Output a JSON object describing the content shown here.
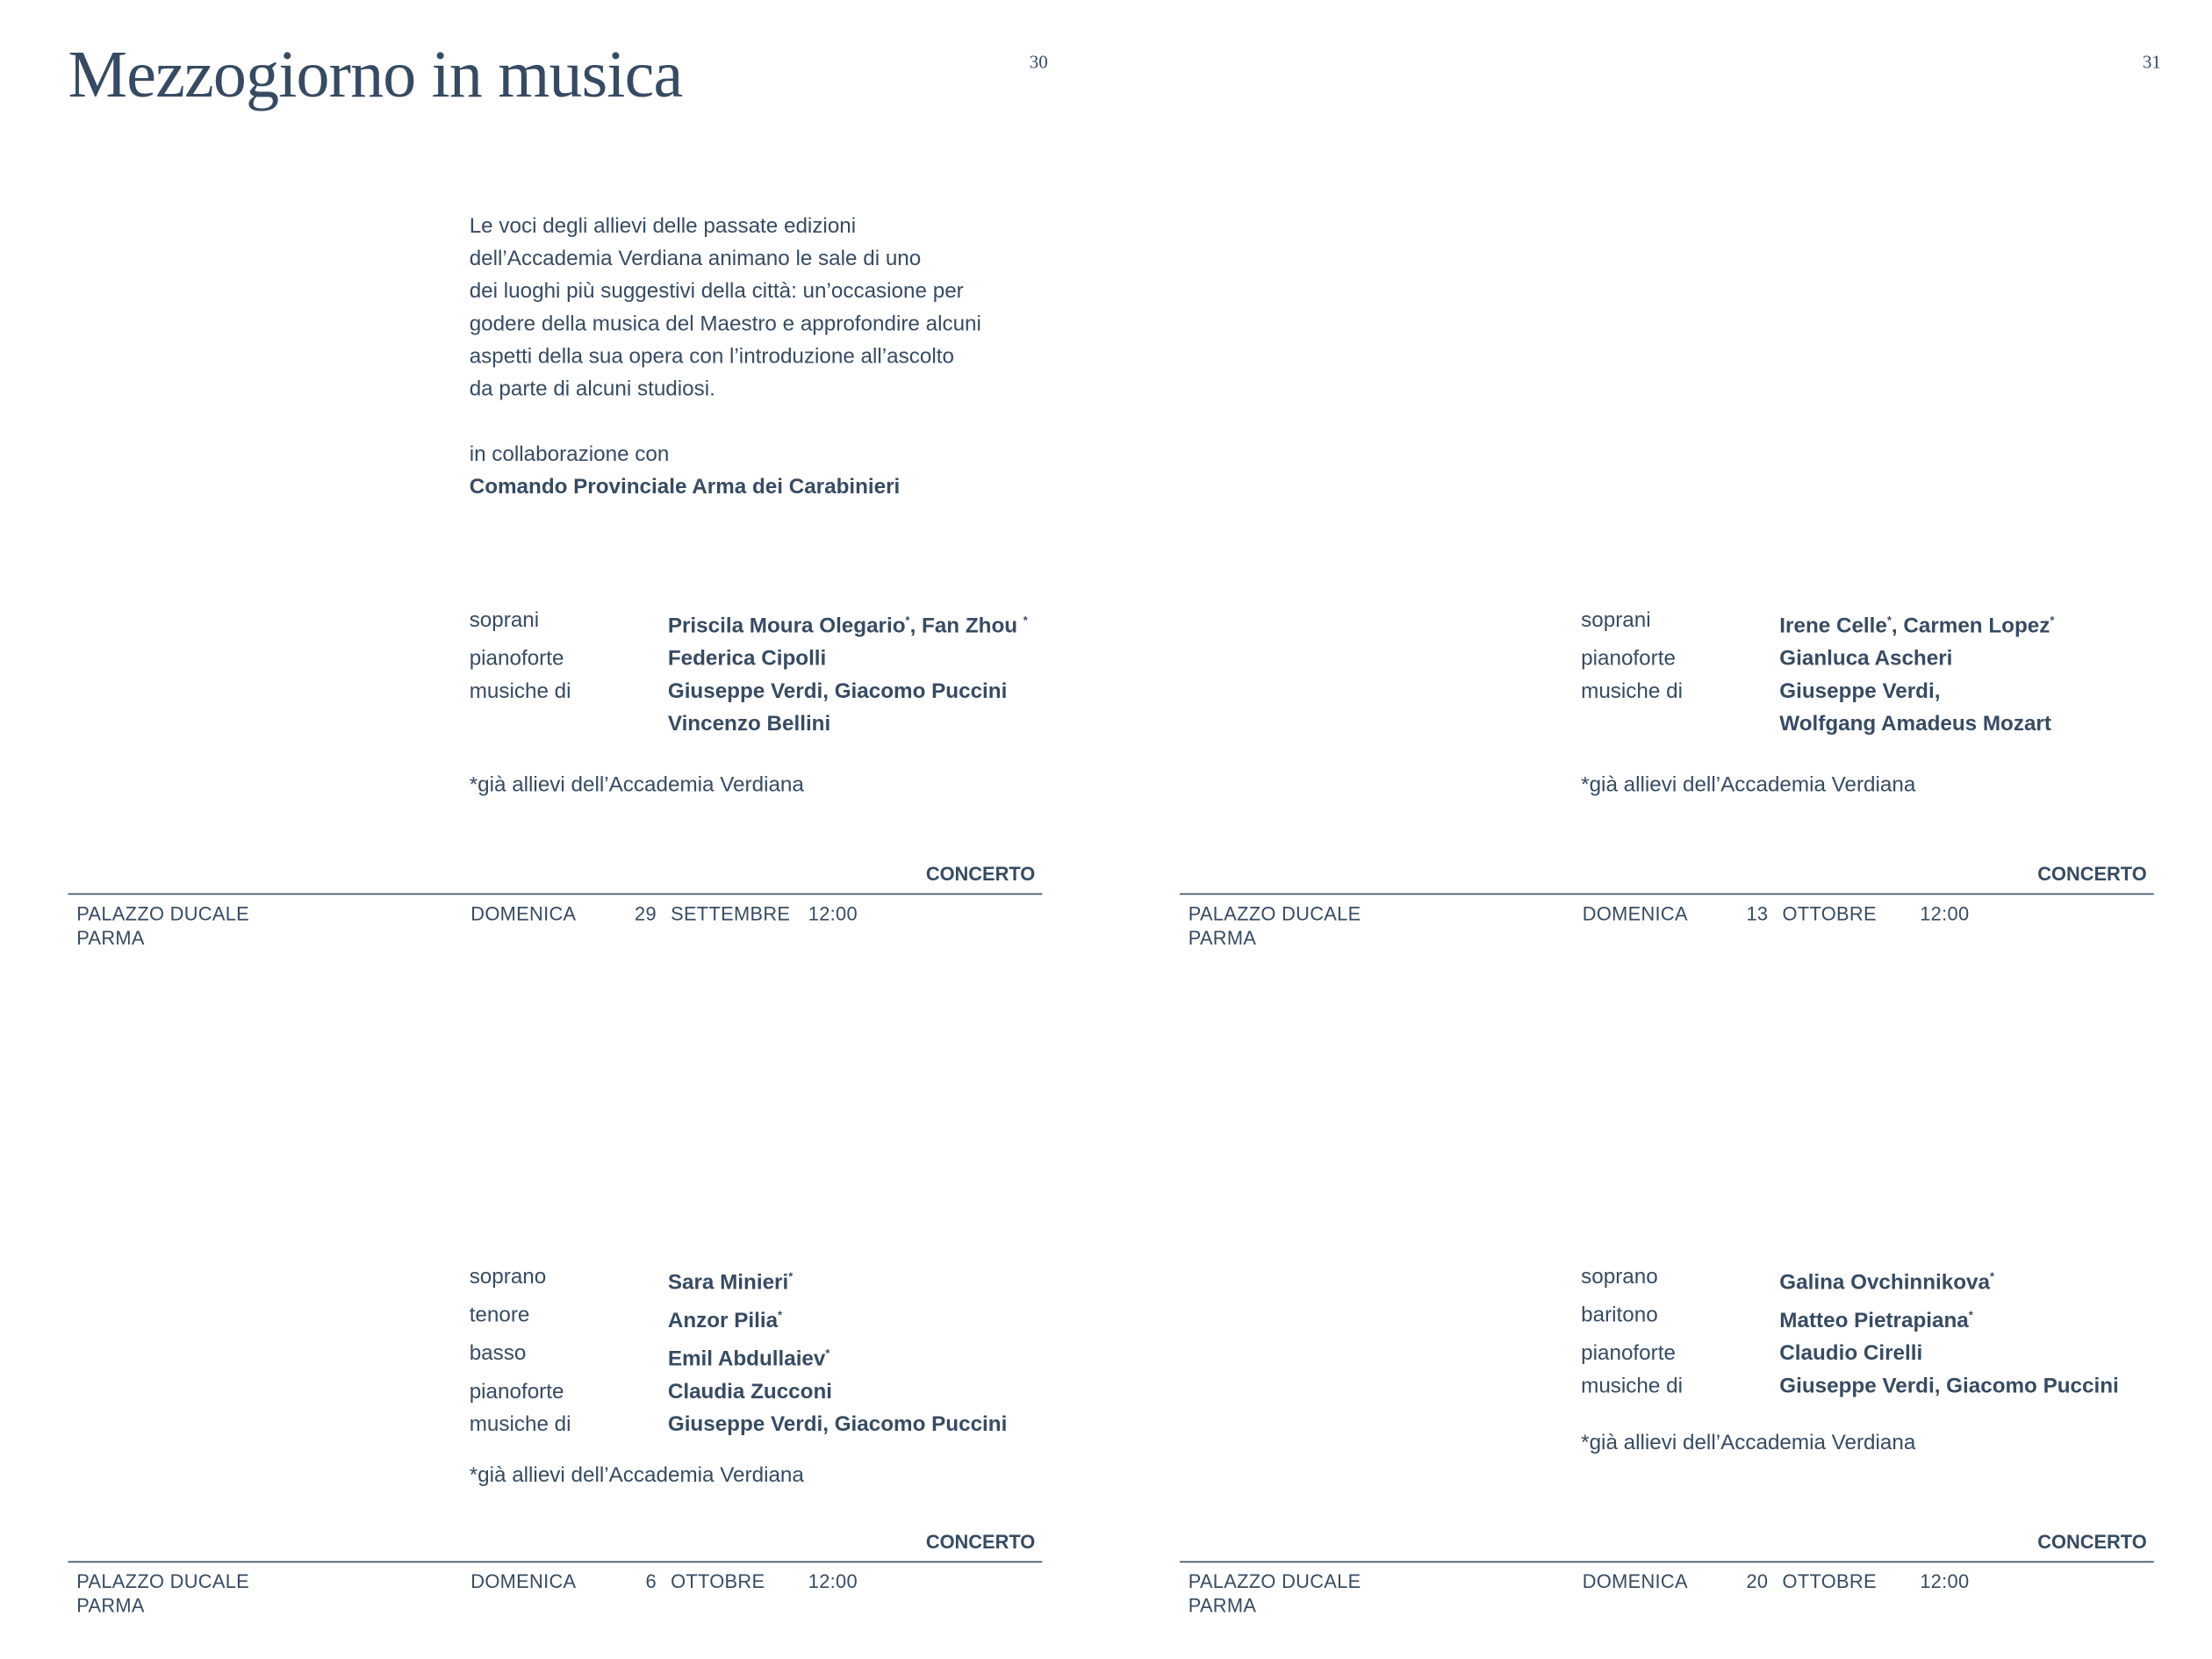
{
  "title": "Mezzogiorno in musica",
  "page_numbers": [
    "30",
    "31"
  ],
  "intro": {
    "lines": [
      "Le voci degli allievi delle passate edizioni",
      "dell’Accademia Verdiana animano le sale di uno",
      "dei luoghi più suggestivi della città: un’occasione per",
      "godere della musica del Maestro e approfondire alcuni",
      "aspetti della sua opera con l’introduzione all’ascolto",
      "da parte di alcuni studiosi."
    ],
    "collab_label": "in collaborazione con",
    "collab_name": "Comando Provinciale Arma dei Carabinieri"
  },
  "events": [
    {
      "credits": [
        {
          "label": "soprani",
          "value": "Priscila Moura Olegario",
          "star": "*",
          "value2": ", Fan Zhou ",
          "star2": "*"
        },
        {
          "label": "pianoforte",
          "value": "Federica Cipolli"
        },
        {
          "label": "musiche di",
          "value": "Giuseppe Verdi, Giacomo Puccini"
        },
        {
          "label": "",
          "value": "Vincenzo Bellini"
        }
      ],
      "footnote": "*già allievi dell’Accademia Verdiana",
      "type": "CONCERTO",
      "venue": "PALAZZO DUCALE",
      "city": "PARMA",
      "weekday": "DOMENICA",
      "day": "29",
      "month": "SETTEMBRE",
      "time": "12:00"
    },
    {
      "credits": [
        {
          "label": "soprani",
          "value": "Irene Celle",
          "star": "*",
          "value2": ", Carmen Lopez",
          "star2": "*"
        },
        {
          "label": "pianoforte",
          "value": "Gianluca Ascheri"
        },
        {
          "label": "musiche di",
          "value": "Giuseppe Verdi,"
        },
        {
          "label": "",
          "value": "Wolfgang Amadeus Mozart"
        }
      ],
      "footnote": "*già allievi dell’Accademia Verdiana",
      "type": "CONCERTO",
      "venue": "PALAZZO DUCALE",
      "city": "PARMA",
      "weekday": "DOMENICA",
      "day": "13",
      "month": "OTTOBRE",
      "time": "12:00"
    },
    {
      "credits": [
        {
          "label": "soprano",
          "value": "Sara Minieri",
          "star": "*"
        },
        {
          "label": "tenore",
          "value": "Anzor Pilia",
          "star": "*"
        },
        {
          "label": "basso",
          "value": "Emil Abdullaiev",
          "star": "*"
        },
        {
          "label": "pianoforte",
          "value": "Claudia Zucconi"
        },
        {
          "label": "musiche di",
          "value": "Giuseppe Verdi, Giacomo Puccini"
        }
      ],
      "footnote": "*già allievi dell’Accademia Verdiana",
      "type": "CONCERTO",
      "venue": "PALAZZO DUCALE",
      "city": "PARMA",
      "weekday": "DOMENICA",
      "day": "6",
      "month": "OTTOBRE",
      "time": "12:00"
    },
    {
      "credits": [
        {
          "label": "soprano",
          "value": "Galina Ovchinnikova",
          "star": "*"
        },
        {
          "label": "baritono",
          "value": "Matteo Pietrapiana",
          "star": "*"
        },
        {
          "label": "pianoforte",
          "value": "Claudio Cirelli"
        },
        {
          "label": "musiche di",
          "value": "Giuseppe Verdi, Giacomo Puccini"
        }
      ],
      "footnote": "*già allievi dell’Accademia Verdiana",
      "type": "CONCERTO",
      "venue": "PALAZZO DUCALE",
      "city": "PARMA",
      "weekday": "DOMENICA",
      "day": "20",
      "month": "OTTOBRE",
      "time": "12:00"
    }
  ],
  "colors": {
    "text": "#364b63",
    "background": "#ffffff"
  }
}
